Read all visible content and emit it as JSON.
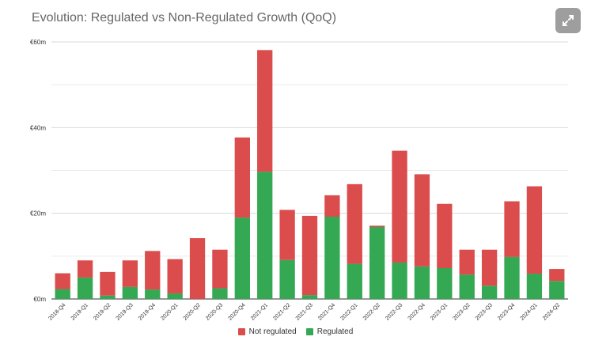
{
  "chart_data": {
    "type": "bar",
    "stacked": true,
    "title": "Evolution: Regulated vs Non-Regulated Growth (QoQ)",
    "categories": [
      "2018-Q4",
      "2019-Q1",
      "2019-Q2",
      "2019-Q3",
      "2019-Q4",
      "2020-Q1",
      "2020-Q2",
      "2020-Q3",
      "2020-Q4",
      "2021-Q1",
      "2021-Q2",
      "2021-Q3",
      "2021-Q4",
      "2022-Q1",
      "2022-Q2",
      "2022-Q3",
      "2022-Q4",
      "2023-Q1",
      "2023-Q2",
      "2023-Q3",
      "2023-Q4",
      "2024-Q1",
      "2024-Q2"
    ],
    "series": [
      {
        "name": "Regulated",
        "color": "#34a853",
        "values": [
          2.3,
          5.0,
          0.8,
          2.8,
          2.2,
          1.3,
          0,
          2.5,
          19.0,
          29.7,
          9.1,
          0.9,
          19.2,
          8.2,
          16.8,
          8.5,
          7.6,
          7.2,
          5.7,
          3.1,
          9.8,
          5.9,
          4.2
        ]
      },
      {
        "name": "Not regulated",
        "color": "#db4c4c",
        "values": [
          3.7,
          4.0,
          5.5,
          6.2,
          9.0,
          8.0,
          14.2,
          9.0,
          18.7,
          28.4,
          11.7,
          18.5,
          5.0,
          18.6,
          0.3,
          26.1,
          21.5,
          15.0,
          5.8,
          8.4,
          13.0,
          20.4,
          2.8
        ]
      }
    ],
    "legend_order": [
      "Not regulated",
      "Regulated"
    ],
    "legend_position": "bottom",
    "ylim": [
      0,
      60
    ],
    "yticks": [
      0,
      20,
      40,
      60
    ],
    "ytick_labels": [
      "€0m",
      "€20m",
      "€40m",
      "€60m"
    ],
    "grid": true
  },
  "ui": {
    "expand_icon": "expand-icon"
  }
}
